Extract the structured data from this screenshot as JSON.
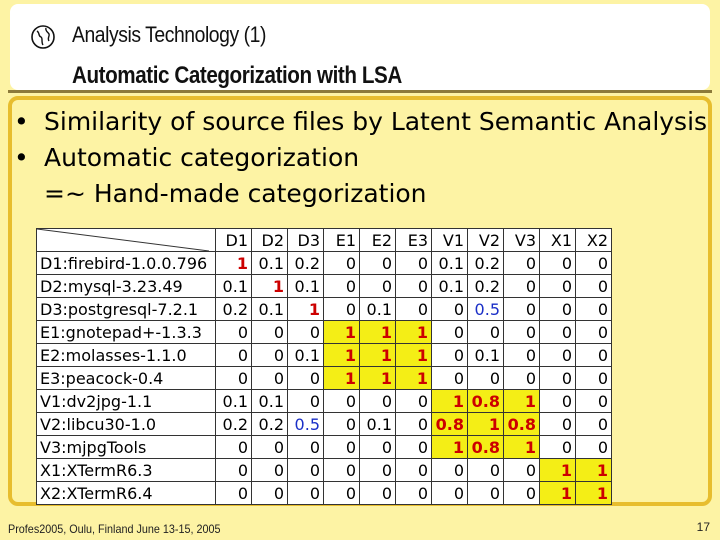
{
  "header": {
    "section": "Analysis Technology (1)",
    "title": "Automatic Categorization with LSA",
    "icon": "globe-icon"
  },
  "bullets": [
    "Similarity of source files by Latent Semantic Analysis",
    "Automatic categorization",
    "=~ Hand-made categorization"
  ],
  "matrix": {
    "columns": [
      "D1",
      "D2",
      "D3",
      "E1",
      "E2",
      "E3",
      "V1",
      "V2",
      "V3",
      "X1",
      "X2"
    ],
    "rows": [
      {
        "label": "D1:firebird-1.0.0.796",
        "values": [
          "1",
          "0.1",
          "0.2",
          "0",
          "0",
          "0",
          "0.1",
          "0.2",
          "0",
          "0",
          "0"
        ]
      },
      {
        "label": "D2:mysql-3.23.49",
        "values": [
          "0.1",
          "1",
          "0.1",
          "0",
          "0",
          "0",
          "0.1",
          "0.2",
          "0",
          "0",
          "0"
        ]
      },
      {
        "label": "D3:postgresql-7.2.1",
        "values": [
          "0.2",
          "0.1",
          "1",
          "0",
          "0.1",
          "0",
          "0",
          "0.5",
          "0",
          "0",
          "0"
        ]
      },
      {
        "label": "E1:gnotepad+-1.3.3",
        "values": [
          "0",
          "0",
          "0",
          "1",
          "1",
          "1",
          "0",
          "0",
          "0",
          "0",
          "0"
        ]
      },
      {
        "label": "E2:molasses-1.1.0",
        "values": [
          "0",
          "0",
          "0.1",
          "1",
          "1",
          "1",
          "0",
          "0.1",
          "0",
          "0",
          "0"
        ]
      },
      {
        "label": "E3:peacock-0.4",
        "values": [
          "0",
          "0",
          "0",
          "1",
          "1",
          "1",
          "0",
          "0",
          "0",
          "0",
          "0"
        ]
      },
      {
        "label": "V1:dv2jpg-1.1",
        "values": [
          "0.1",
          "0.1",
          "0",
          "0",
          "0",
          "0",
          "1",
          "0.8",
          "1",
          "0",
          "0"
        ]
      },
      {
        "label": "V2:libcu30-1.0",
        "values": [
          "0.2",
          "0.2",
          "0.5",
          "0",
          "0.1",
          "0",
          "0.8",
          "1",
          "0.8",
          "0",
          "0"
        ]
      },
      {
        "label": "V3:mjpgTools",
        "values": [
          "0",
          "0",
          "0",
          "0",
          "0",
          "0",
          "1",
          "0.8",
          "1",
          "0",
          "0"
        ]
      },
      {
        "label": "X1:XTermR6.3",
        "values": [
          "0",
          "0",
          "0",
          "0",
          "0",
          "0",
          "0",
          "0",
          "0",
          "1",
          "1"
        ]
      },
      {
        "label": "X2:XTermR6.4",
        "values": [
          "0",
          "0",
          "0",
          "0",
          "0",
          "0",
          "0",
          "0",
          "0",
          "1",
          "1"
        ]
      }
    ],
    "highlight_color": "#f4ee16",
    "highlight_text_color": "#cc0000",
    "emphasis_color": "#1a2fc7"
  },
  "footer": {
    "left": "Profes2005, Oulu, Finland June 13-15, 2005",
    "page": "17"
  }
}
